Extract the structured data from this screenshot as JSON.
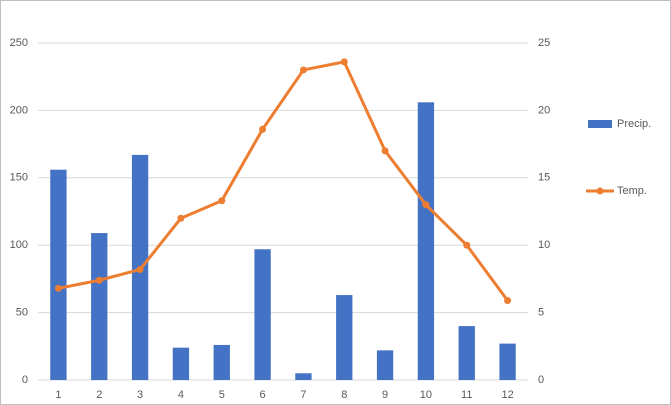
{
  "chart_data": {
    "type": "combo",
    "categories": [
      "1",
      "2",
      "3",
      "4",
      "5",
      "6",
      "7",
      "8",
      "9",
      "10",
      "11",
      "12"
    ],
    "series": [
      {
        "name": "Precip.",
        "type": "bar",
        "color": "#4472c4",
        "values": [
          156,
          109,
          167,
          24,
          26,
          97,
          5,
          63,
          22,
          206,
          40,
          27
        ]
      },
      {
        "name": "Temp.",
        "type": "line",
        "axis": "y2",
        "color": "#ed7d31",
        "values": [
          6.8,
          7.4,
          8.2,
          12.0,
          13.3,
          18.6,
          23.0,
          23.6,
          17.0,
          13.0,
          10.0,
          5.9
        ]
      }
    ],
    "ylim": [
      0,
      250
    ],
    "yticks": [
      0,
      50,
      100,
      150,
      200,
      250
    ],
    "y2lim": [
      0,
      25
    ],
    "y2ticks": [
      0,
      5,
      10,
      15,
      20,
      25
    ],
    "grid": true,
    "legend": "right"
  }
}
